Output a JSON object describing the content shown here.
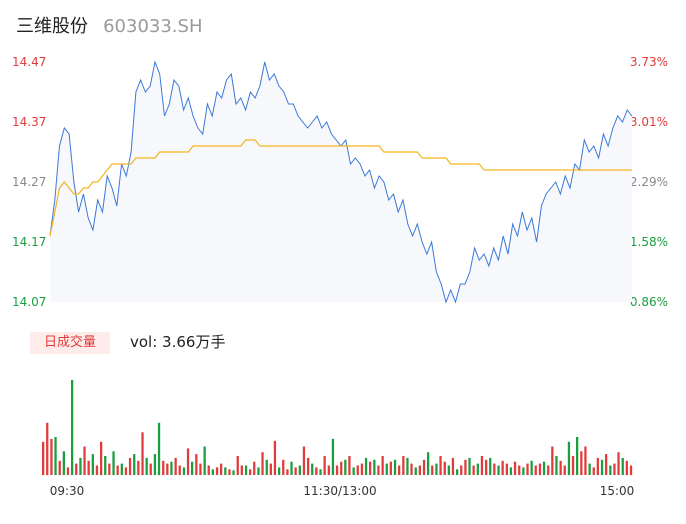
{
  "header": {
    "name": "三维股份",
    "code": "603033.SH"
  },
  "colors": {
    "up": "#e23b3b",
    "down": "#1a9e3f",
    "neutral": "#888888",
    "price_line": "#3c78d8",
    "avg_line": "#f5b31f",
    "area_fill": "#f6f8fc"
  },
  "volume_panel": {
    "tag": "日成交量",
    "text": "vol: 3.66万手"
  },
  "chart_data": [
    {
      "type": "line",
      "name": "intraday-price",
      "y_ticks_left": [
        "14.47",
        "14.37",
        "14.27",
        "14.17",
        "14.07"
      ],
      "y_ticks_right": [
        "3.73%",
        "3.01%",
        "2.29%",
        "1.58%",
        "0.86%"
      ],
      "ylim": [
        14.07,
        14.47
      ],
      "x_ticks": [
        "09:30",
        "11:30/13:00",
        "15:00"
      ],
      "series": [
        {
          "name": "price",
          "values": [
            14.18,
            14.24,
            14.33,
            14.36,
            14.35,
            14.27,
            14.22,
            14.25,
            14.21,
            14.19,
            14.24,
            14.22,
            14.28,
            14.26,
            14.23,
            14.3,
            14.28,
            14.32,
            14.42,
            14.44,
            14.42,
            14.43,
            14.47,
            14.45,
            14.38,
            14.4,
            14.44,
            14.43,
            14.39,
            14.41,
            14.38,
            14.36,
            14.35,
            14.4,
            14.38,
            14.42,
            14.41,
            14.44,
            14.45,
            14.4,
            14.41,
            14.39,
            14.42,
            14.41,
            14.43,
            14.47,
            14.44,
            14.45,
            14.43,
            14.42,
            14.4,
            14.4,
            14.38,
            14.37,
            14.36,
            14.37,
            14.38,
            14.36,
            14.37,
            14.35,
            14.34,
            14.33,
            14.34,
            14.3,
            14.31,
            14.3,
            14.28,
            14.29,
            14.26,
            14.28,
            14.27,
            14.24,
            14.25,
            14.22,
            14.24,
            14.2,
            14.18,
            14.2,
            14.17,
            14.15,
            14.17,
            14.12,
            14.1,
            14.07,
            14.09,
            14.07,
            14.1,
            14.1,
            14.12,
            14.16,
            14.14,
            14.15,
            14.13,
            14.16,
            14.14,
            14.18,
            14.15,
            14.2,
            14.18,
            14.22,
            14.19,
            14.21,
            14.17,
            14.23,
            14.25,
            14.26,
            14.27,
            14.25,
            14.28,
            14.26,
            14.3,
            14.29,
            14.34,
            14.32,
            14.33,
            14.31,
            14.35,
            14.33,
            14.36,
            14.38,
            14.37,
            14.39,
            14.38
          ]
        },
        {
          "name": "avg",
          "values": [
            14.18,
            14.22,
            14.26,
            14.27,
            14.26,
            14.25,
            14.25,
            14.26,
            14.26,
            14.27,
            14.27,
            14.28,
            14.29,
            14.3,
            14.3,
            14.3,
            14.3,
            14.3,
            14.31,
            14.31,
            14.31,
            14.31,
            14.31,
            14.32,
            14.32,
            14.32,
            14.32,
            14.32,
            14.32,
            14.32,
            14.33,
            14.33,
            14.33,
            14.33,
            14.33,
            14.33,
            14.33,
            14.33,
            14.33,
            14.33,
            14.33,
            14.34,
            14.34,
            14.34,
            14.33,
            14.33,
            14.33,
            14.33,
            14.33,
            14.33,
            14.33,
            14.33,
            14.33,
            14.33,
            14.33,
            14.33,
            14.33,
            14.33,
            14.33,
            14.33,
            14.33,
            14.33,
            14.33,
            14.33,
            14.33,
            14.33,
            14.33,
            14.33,
            14.33,
            14.33,
            14.32,
            14.32,
            14.32,
            14.32,
            14.32,
            14.32,
            14.32,
            14.32,
            14.31,
            14.31,
            14.31,
            14.31,
            14.31,
            14.31,
            14.3,
            14.3,
            14.3,
            14.3,
            14.3,
            14.3,
            14.3,
            14.29,
            14.29,
            14.29,
            14.29,
            14.29,
            14.29,
            14.29,
            14.29,
            14.29,
            14.29,
            14.29,
            14.29,
            14.29,
            14.29,
            14.29,
            14.29,
            14.29,
            14.29,
            14.29,
            14.29,
            14.29,
            14.29,
            14.29,
            14.29,
            14.29,
            14.29,
            14.29,
            14.29,
            14.29,
            14.29,
            14.29,
            14.29
          ]
        }
      ]
    },
    {
      "type": "bar",
      "name": "volume",
      "values": [
        0.35,
        0.55,
        0.38,
        0.4,
        0.15,
        0.25,
        0.08,
        1.0,
        0.12,
        0.18,
        0.3,
        0.15,
        0.22,
        0.1,
        0.35,
        0.2,
        0.12,
        0.25,
        0.1,
        0.12,
        0.08,
        0.18,
        0.22,
        0.15,
        0.45,
        0.18,
        0.12,
        0.22,
        0.55,
        0.15,
        0.12,
        0.14,
        0.18,
        0.1,
        0.08,
        0.28,
        0.14,
        0.22,
        0.12,
        0.3,
        0.1,
        0.06,
        0.08,
        0.12,
        0.08,
        0.06,
        0.05,
        0.2,
        0.1,
        0.1,
        0.06,
        0.14,
        0.08,
        0.24,
        0.16,
        0.12,
        0.36,
        0.08,
        0.16,
        0.06,
        0.14,
        0.08,
        0.1,
        0.3,
        0.18,
        0.12,
        0.08,
        0.06,
        0.2,
        0.1,
        0.38,
        0.1,
        0.14,
        0.16,
        0.2,
        0.08,
        0.1,
        0.12,
        0.18,
        0.14,
        0.16,
        0.1,
        0.2,
        0.12,
        0.14,
        0.16,
        0.1,
        0.2,
        0.18,
        0.12,
        0.08,
        0.1,
        0.16,
        0.24,
        0.1,
        0.12,
        0.2,
        0.14,
        0.1,
        0.18,
        0.06,
        0.1,
        0.16,
        0.18,
        0.1,
        0.12,
        0.2,
        0.16,
        0.18,
        0.12,
        0.1,
        0.15,
        0.12,
        0.08,
        0.14,
        0.1,
        0.08,
        0.12,
        0.15,
        0.1,
        0.12,
        0.14,
        0.1,
        0.3,
        0.2,
        0.15,
        0.1,
        0.35,
        0.2,
        0.4,
        0.25,
        0.3,
        0.12,
        0.08,
        0.18,
        0.16,
        0.22,
        0.1,
        0.12,
        0.24,
        0.18,
        0.15,
        0.1
      ],
      "colors": [
        "r",
        "r",
        "r",
        "g",
        "r",
        "g",
        "r",
        "g",
        "r",
        "g",
        "r",
        "r",
        "g",
        "r",
        "r",
        "g",
        "r",
        "g",
        "r",
        "g",
        "r",
        "r",
        "g",
        "r",
        "r",
        "g",
        "r",
        "g",
        "g",
        "r",
        "r",
        "g",
        "r",
        "r",
        "g",
        "r",
        "g",
        "r",
        "r",
        "g",
        "r",
        "g",
        "r",
        "r",
        "g",
        "r",
        "g",
        "r",
        "r",
        "g",
        "r",
        "r",
        "g",
        "r",
        "g",
        "r",
        "r",
        "g",
        "r",
        "r",
        "g",
        "r",
        "g",
        "r",
        "r",
        "g",
        "r",
        "g",
        "r",
        "r",
        "g",
        "r",
        "r",
        "g",
        "r",
        "g",
        "r",
        "r",
        "g",
        "r",
        "g",
        "r",
        "r",
        "g",
        "r",
        "g",
        "r",
        "r",
        "g",
        "r",
        "g",
        "r",
        "r",
        "g",
        "r",
        "g",
        "r",
        "r",
        "g",
        "r",
        "g",
        "r",
        "r",
        "g",
        "r",
        "g",
        "r",
        "r",
        "g",
        "r",
        "g",
        "r",
        "r",
        "g",
        "r",
        "r",
        "g",
        "r",
        "g",
        "r",
        "r",
        "g",
        "r",
        "r",
        "g",
        "r",
        "r",
        "g",
        "r",
        "g",
        "r",
        "r",
        "g",
        "r",
        "r",
        "g",
        "r",
        "g",
        "r",
        "r",
        "g"
      ]
    }
  ]
}
